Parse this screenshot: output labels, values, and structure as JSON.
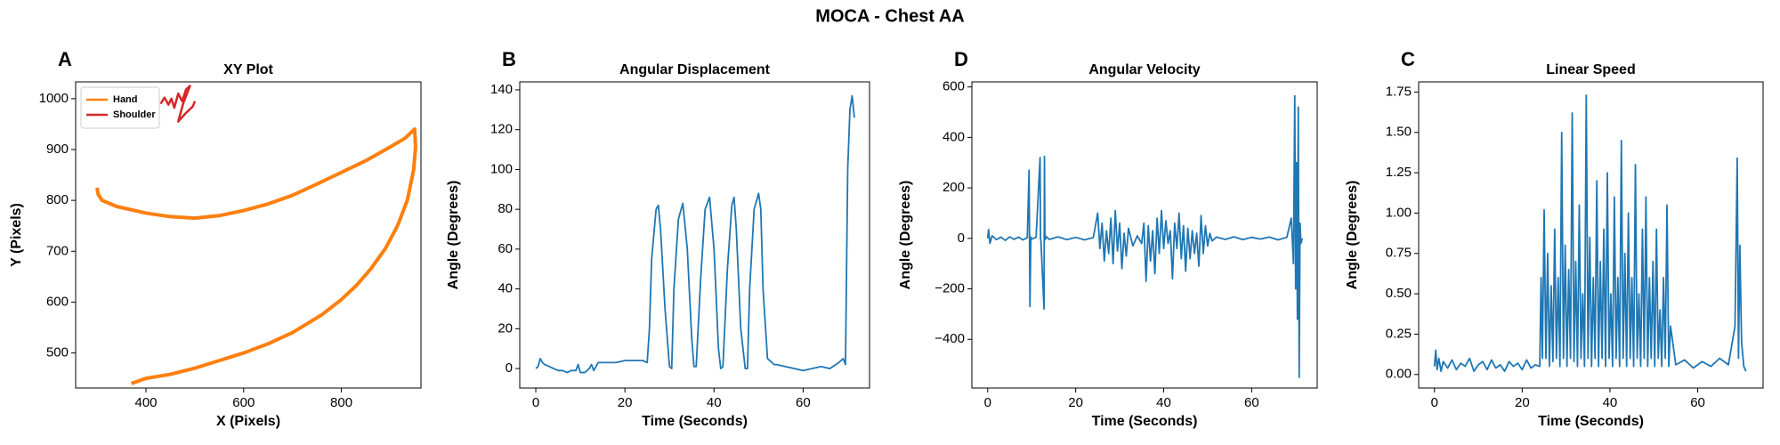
{
  "title": "MOCA - Chest AA",
  "chart_data": [
    {
      "type": "line",
      "panel_label": "A",
      "title": "XY Plot",
      "xlabel": "X (Pixels)",
      "ylabel": "Y (Pixels)",
      "xlim": [
        256,
        963
      ],
      "ylim": [
        431,
        1033
      ],
      "xticks": [
        400,
        600,
        800
      ],
      "yticks": [
        500,
        600,
        700,
        800,
        900,
        1000
      ],
      "legend": "upper left",
      "series": [
        {
          "name": "Hand",
          "color": "#ff7f0e",
          "x": [
            300,
            302,
            310,
            340,
            400,
            450,
            500,
            550,
            600,
            650,
            700,
            750,
            800,
            850,
            900,
            930,
            950,
            952,
            948,
            935,
            915,
            890,
            860,
            830,
            800,
            760,
            700,
            650,
            600,
            550,
            500,
            450,
            400,
            370
          ],
          "values": [
            825,
            812,
            800,
            788,
            775,
            768,
            765,
            770,
            780,
            793,
            810,
            832,
            855,
            878,
            905,
            922,
            940,
            905,
            860,
            800,
            750,
            705,
            665,
            632,
            605,
            575,
            540,
            518,
            500,
            485,
            470,
            458,
            450,
            440
          ]
        },
        {
          "name": "Shoulder",
          "color": "#d62728",
          "x": [
            430,
            438,
            446,
            452,
            458,
            466,
            474,
            482,
            490,
            476,
            466,
            480,
            496,
            500
          ],
          "values": [
            990,
            1002,
            988,
            1000,
            982,
            1010,
            995,
            1018,
            1025,
            990,
            955,
            970,
            985,
            995
          ]
        }
      ]
    },
    {
      "type": "line",
      "panel_label": "B",
      "title": "Angular Displacement",
      "xlabel": "Time (Seconds)",
      "ylabel": "Angle (Degrees)",
      "xlim": [
        -3.6,
        74.9
      ],
      "ylim": [
        -9.8,
        144
      ],
      "xticks": [
        0,
        20,
        40,
        60
      ],
      "yticks": [
        0,
        20,
        40,
        60,
        80,
        100,
        120,
        140
      ],
      "series": [
        {
          "color": "#1f77b4",
          "x": [
            0,
            0.5,
            1,
            1.5,
            2,
            3,
            4,
            5,
            6,
            7,
            8,
            9,
            9.5,
            10,
            11,
            12,
            12.5,
            13,
            14,
            16,
            18,
            20,
            22,
            24,
            25,
            25.5,
            26,
            27,
            27.5,
            28,
            29,
            30,
            30.5,
            31,
            32,
            33,
            34,
            35,
            35.5,
            36,
            37,
            38,
            39,
            40,
            41,
            41.5,
            42,
            43,
            44,
            44.5,
            45,
            46,
            47,
            47.5,
            48,
            49,
            50,
            50.5,
            51,
            52,
            53,
            53.5,
            54,
            56,
            58,
            60,
            62,
            64,
            66,
            68,
            69,
            69.5,
            70,
            70.5,
            71,
            71.5
          ],
          "values": [
            0,
            1,
            5,
            3,
            2,
            1,
            0,
            -1,
            -1,
            -2,
            -1,
            -1,
            2,
            -2,
            -2,
            0,
            2,
            -1,
            3,
            3,
            3,
            4,
            4,
            4,
            3,
            20,
            55,
            80,
            82,
            70,
            30,
            1,
            0,
            40,
            75,
            83,
            60,
            15,
            1,
            1,
            45,
            80,
            86,
            60,
            10,
            0,
            1,
            50,
            82,
            86,
            70,
            20,
            0,
            0,
            40,
            80,
            88,
            80,
            40,
            5,
            3,
            2,
            2,
            1,
            0,
            -1,
            0,
            1,
            0,
            3,
            5,
            2,
            100,
            130,
            137,
            126
          ]
        }
      ]
    },
    {
      "type": "line",
      "panel_label": "D",
      "title": "Angular Velocity",
      "xlabel": "Time (Seconds)",
      "ylabel": "Angle (Degrees)",
      "xlim": [
        -3.6,
        74.9
      ],
      "ylim": [
        -593,
        620
      ],
      "xticks": [
        0,
        20,
        40,
        60
      ],
      "yticks": [
        {
          "value": -400,
          "label": "−400"
        },
        {
          "value": -200,
          "label": "−200"
        },
        0,
        200,
        400,
        600
      ],
      "series": [
        {
          "color": "#1f77b4",
          "x": [
            0,
            0.2,
            0.5,
            1,
            2,
            3,
            4,
            5,
            6,
            7,
            8,
            9,
            9.4,
            9.5,
            9.6,
            9.8,
            10,
            11,
            11.9,
            12,
            12.1,
            12.8,
            12.9,
            13,
            13.1,
            13.2,
            14,
            16,
            18,
            20,
            22,
            24,
            25,
            25.5,
            26,
            26.5,
            27,
            27.5,
            28,
            28.5,
            29,
            29.5,
            30,
            30.5,
            31,
            31.5,
            32,
            33,
            34,
            35,
            35.5,
            36,
            36.5,
            37,
            37.5,
            38,
            38.5,
            39,
            39.5,
            40,
            40.5,
            41,
            41.5,
            42,
            42.5,
            43,
            43.5,
            44,
            44.5,
            45,
            45.5,
            46,
            46.5,
            47,
            47.5,
            48,
            48.5,
            49,
            49.5,
            50,
            50.5,
            51,
            52,
            54,
            56,
            58,
            60,
            62,
            64,
            66,
            68,
            69,
            69.5,
            69.8,
            70,
            70.2,
            70.4,
            70.6,
            70.8,
            71,
            71.2,
            71.5
          ],
          "values": [
            0,
            35,
            -20,
            10,
            -5,
            5,
            -8,
            6,
            -4,
            5,
            -6,
            3,
            270,
            0,
            -270,
            5,
            -3,
            4,
            320,
            0,
            -10,
            -280,
            325,
            0,
            -5,
            8,
            -4,
            6,
            -5,
            4,
            -6,
            3,
            100,
            -40,
            60,
            -90,
            30,
            -60,
            80,
            -100,
            110,
            -50,
            60,
            -120,
            20,
            -70,
            40,
            -30,
            10,
            -20,
            60,
            -170,
            50,
            -90,
            30,
            -140,
            80,
            -60,
            110,
            -40,
            70,
            -20,
            30,
            -160,
            60,
            -40,
            100,
            -80,
            50,
            -130,
            40,
            -80,
            30,
            -60,
            20,
            -110,
            90,
            -60,
            50,
            -30,
            20,
            -10,
            5,
            -4,
            6,
            -5,
            4,
            -3,
            5,
            -6,
            4,
            80,
            -100,
            565,
            -200,
            300,
            -320,
            520,
            -550,
            60,
            -20,
            0
          ]
        }
      ]
    },
    {
      "type": "line",
      "panel_label": "C",
      "title": "Linear Speed",
      "xlabel": "Time (Seconds)",
      "ylabel": "Angle (Degrees)",
      "xlim": [
        -3.6,
        74.9
      ],
      "ylim": [
        -0.084,
        1.813
      ],
      "xticks": [
        0,
        20,
        40,
        60
      ],
      "yticks": [
        {
          "value": 0,
          "label": "0.00"
        },
        {
          "value": 0.25,
          "label": "0.25"
        },
        {
          "value": 0.5,
          "label": "0.50"
        },
        {
          "value": 0.75,
          "label": "0.75"
        },
        {
          "value": 1,
          "label": "1.00"
        },
        {
          "value": 1.25,
          "label": "1.25"
        },
        {
          "value": 1.5,
          "label": "1.50"
        },
        {
          "value": 1.75,
          "label": "1.75"
        }
      ],
      "series": [
        {
          "color": "#1f77b4",
          "x": [
            0,
            0.3,
            0.6,
            1,
            1.5,
            2,
            3,
            4,
            5,
            6,
            7,
            8,
            9,
            10,
            11,
            12,
            13,
            14,
            15,
            16,
            17,
            18,
            19,
            20,
            21,
            22,
            23,
            24,
            24.3,
            24.6,
            25,
            25.4,
            25.8,
            26.2,
            26.6,
            27,
            27.4,
            27.8,
            28.2,
            28.6,
            29,
            29.4,
            29.8,
            30.2,
            30.6,
            31,
            31.4,
            31.8,
            32.2,
            32.6,
            33,
            33.4,
            33.8,
            34.2,
            34.6,
            35,
            35.4,
            35.8,
            36.2,
            36.6,
            37,
            37.4,
            37.8,
            38.2,
            38.6,
            39,
            39.4,
            39.8,
            40.2,
            40.6,
            41,
            41.4,
            41.8,
            42.2,
            42.6,
            43,
            43.4,
            43.8,
            44.2,
            44.6,
            45,
            45.4,
            45.8,
            46.2,
            46.6,
            47,
            47.4,
            47.8,
            48.2,
            48.6,
            49,
            49.4,
            49.8,
            50.2,
            50.6,
            51,
            51.4,
            51.8,
            52.2,
            52.6,
            53,
            53.4,
            53.8,
            55,
            57,
            59,
            61,
            63,
            65,
            67,
            68.5,
            69,
            69.3,
            69.6,
            70,
            70.5,
            71
          ],
          "values": [
            0.05,
            0.15,
            0.03,
            0.1,
            0.02,
            0.08,
            0.04,
            0.09,
            0.03,
            0.07,
            0.05,
            0.1,
            0.02,
            0.06,
            0.08,
            0.03,
            0.09,
            0.04,
            0.06,
            0.02,
            0.08,
            0.05,
            0.07,
            0.03,
            0.09,
            0.04,
            0.06,
            0.05,
            0.6,
            0.1,
            1.02,
            0.1,
            0.75,
            0.05,
            0.55,
            0.08,
            0.9,
            0.1,
            0.6,
            0.05,
            1.5,
            0.1,
            0.8,
            0.05,
            0.65,
            0.1,
            1.62,
            0.08,
            0.7,
            0.05,
            1.05,
            0.1,
            0.5,
            0.05,
            1.73,
            0.1,
            0.85,
            0.05,
            0.6,
            0.1,
            1.2,
            0.05,
            0.7,
            0.1,
            0.9,
            0.05,
            1.25,
            0.1,
            0.5,
            0.05,
            1.1,
            0.1,
            0.6,
            0.05,
            1.45,
            0.1,
            0.75,
            0.05,
            1.0,
            0.1,
            0.6,
            0.05,
            1.3,
            0.1,
            0.5,
            0.05,
            0.9,
            0.1,
            1.1,
            0.05,
            0.6,
            0.1,
            0.7,
            0.05,
            0.9,
            0.1,
            0.4,
            0.05,
            0.6,
            0.1,
            1.05,
            0.05,
            0.3,
            0.06,
            0.09,
            0.04,
            0.08,
            0.05,
            0.1,
            0.06,
            0.3,
            1.34,
            0.1,
            0.8,
            0.2,
            0.05,
            0.02
          ]
        }
      ]
    }
  ]
}
